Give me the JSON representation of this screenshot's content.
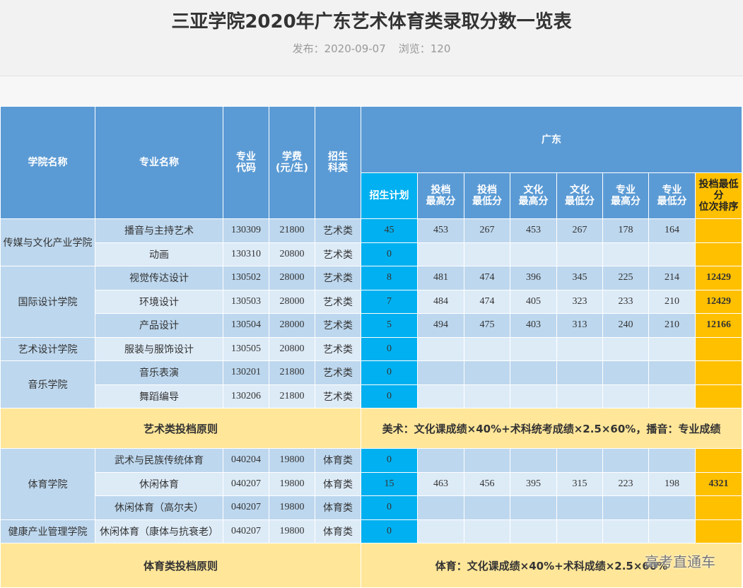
{
  "header": {
    "title": "三亚学院2020年广东艺术体育类录取分数一览表",
    "published": "发布：2020-09-07",
    "views": "浏览：120"
  },
  "table": {
    "columns": [
      "学院名称",
      "专业名称",
      "专业\n代码",
      "学费\n(元/生)",
      "招生\n科类"
    ],
    "region": "广东",
    "subcolumns": [
      "招生计划",
      "投档\n最高分",
      "投档\n最低分",
      "文化\n最高分",
      "文化\n最低分",
      "专业\n最高分",
      "专业\n最低分",
      "投档最低\n分\n位次排序"
    ],
    "sections": [
      {
        "groups": [
          {
            "college": "传媒与文化产业学院",
            "rows": [
              [
                "播音与主持艺术",
                "130309",
                21800,
                "艺术类",
                45,
                453,
                267,
                453,
                267,
                178,
                164,
                null
              ],
              [
                "动画",
                "130310",
                20800,
                "艺术类",
                0,
                null,
                null,
                null,
                null,
                null,
                null,
                null
              ]
            ]
          },
          {
            "college": "国际设计学院",
            "rows": [
              [
                "视觉传达设计",
                "130502",
                28000,
                "艺术类",
                8,
                481,
                474,
                396,
                345,
                225,
                214,
                12429
              ],
              [
                "环境设计",
                "130503",
                28000,
                "艺术类",
                7,
                484,
                474,
                405,
                323,
                233,
                210,
                12429
              ],
              [
                "产品设计",
                "130504",
                28000,
                "艺术类",
                5,
                494,
                475,
                403,
                313,
                240,
                210,
                12166
              ]
            ]
          },
          {
            "college": "艺术设计学院",
            "rows": [
              [
                "服装与服饰设计",
                "130505",
                20800,
                "艺术类",
                0,
                null,
                null,
                null,
                null,
                null,
                null,
                null
              ]
            ]
          },
          {
            "college": "音乐学院",
            "rows": [
              [
                "音乐表演",
                "130201",
                21800,
                "艺术类",
                0,
                null,
                null,
                null,
                null,
                null,
                null,
                null
              ],
              [
                "舞蹈编导",
                "130206",
                21800,
                "艺术类",
                0,
                null,
                null,
                null,
                null,
                null,
                null,
                null
              ]
            ]
          }
        ],
        "principle": {
          "label": "艺术类投档原则",
          "text": "美术：文化课成绩×40%+术科统考成绩×2.5×60%，播音：专业成绩"
        }
      },
      {
        "groups": [
          {
            "college": "体育学院",
            "rows": [
              [
                "武术与民族传统体育",
                "040204",
                19800,
                "体育类",
                0,
                null,
                null,
                null,
                null,
                null,
                null,
                null
              ],
              [
                "休闲体育",
                "040207",
                19800,
                "体育类",
                15,
                463,
                456,
                395,
                315,
                223,
                198,
                4321
              ],
              [
                "休闲体育（高尔夫）",
                "040207",
                19800,
                "体育类",
                0,
                null,
                null,
                null,
                null,
                null,
                null,
                null
              ]
            ]
          },
          {
            "college": "健康产业管理学院",
            "rows": [
              [
                "休闲体育（康体与抗衰老）",
                "040207",
                19800,
                "体育类",
                0,
                null,
                null,
                null,
                null,
                null,
                null,
                null
              ]
            ]
          }
        ],
        "principle": {
          "label": "体育类投档原则",
          "text": "体育：文化课成绩×40%+术科成绩×2.5×60%"
        }
      }
    ]
  },
  "watermark": "高考直通车"
}
